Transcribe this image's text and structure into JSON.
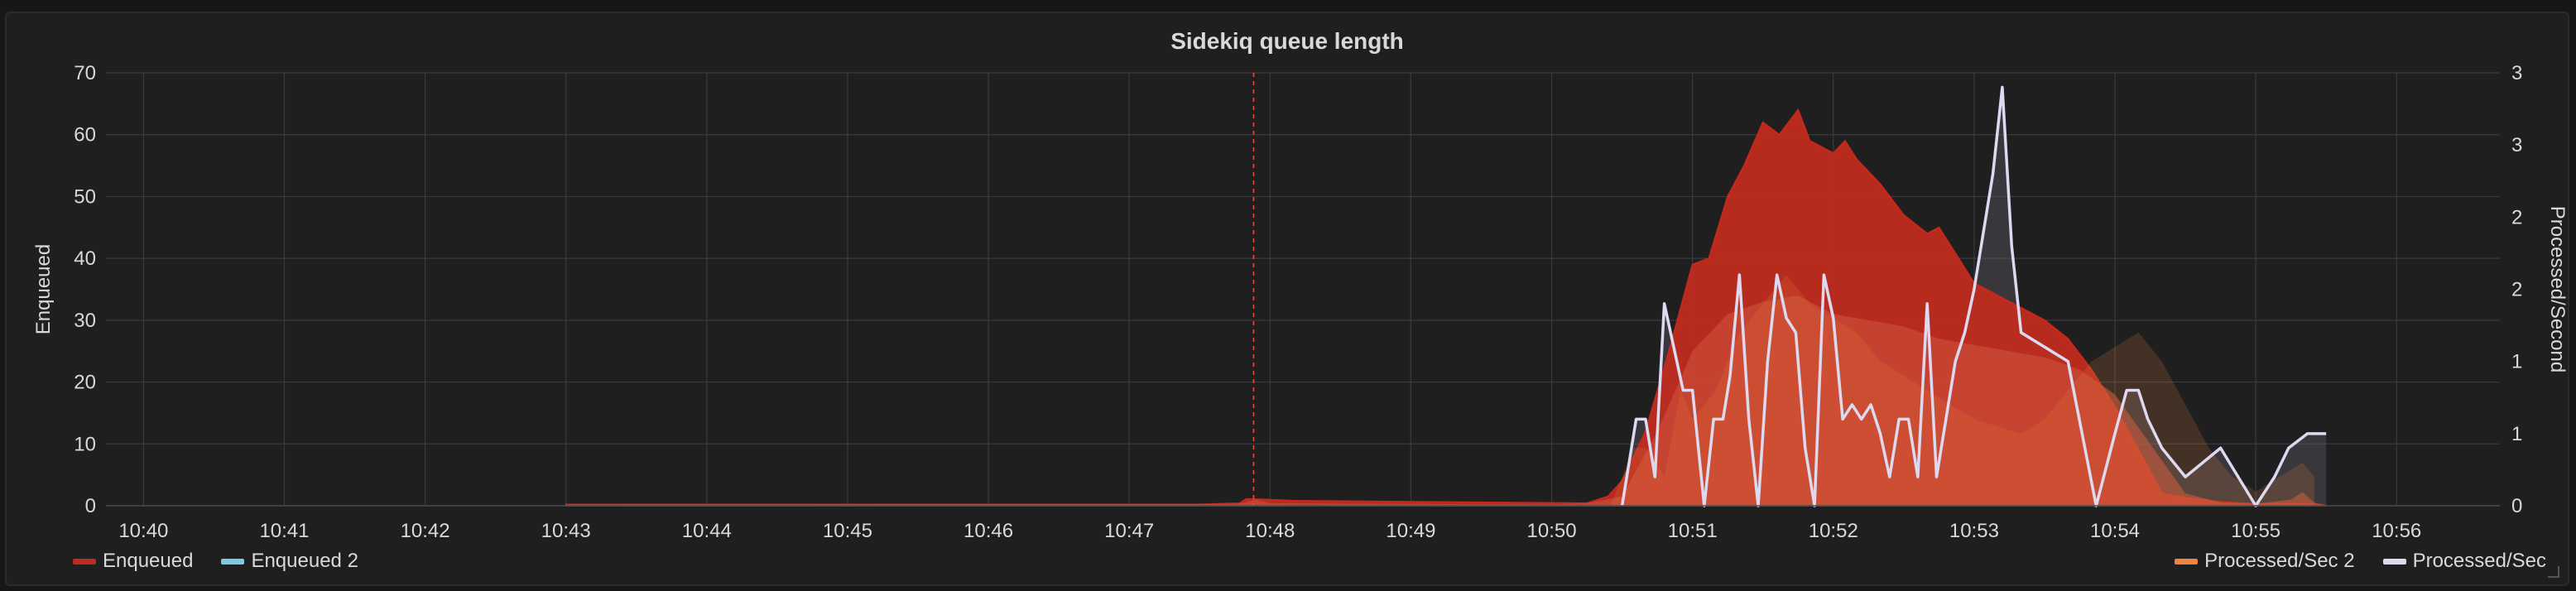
{
  "panel": {
    "title": "Sidekiq queue length"
  },
  "chart_data": {
    "type": "area",
    "title": "Sidekiq queue length",
    "ylabel": "Enqueued",
    "y2label": "Processed/Second",
    "ylim": [
      0,
      70
    ],
    "y_ticks": [
      "0",
      "10",
      "20",
      "30",
      "40",
      "50",
      "60",
      "70"
    ],
    "y2lim": [
      0,
      3
    ],
    "y2_ticks": [
      "0",
      "1",
      "1",
      "2",
      "2",
      "3",
      "3"
    ],
    "x_ticks": [
      "10:40",
      "10:41",
      "10:42",
      "10:43",
      "10:44",
      "10:45",
      "10:46",
      "10:47",
      "10:48",
      "10:49",
      "10:50",
      "10:51",
      "10:52",
      "10:53",
      "10:54",
      "10:55",
      "10:56"
    ],
    "xlim": [
      "10:39:44",
      "10:56:44"
    ],
    "annotation_time": "10:47:53",
    "grid": true,
    "colors": {
      "Enqueued": "#bf2c1f",
      "Enqueued 2": "#7ec8e3",
      "Processed/Sec 2": "#ef843c",
      "Processed/Sec": "#dcd9f0",
      "annotation": "#e24d42"
    },
    "series": [
      {
        "name": "Enqueued",
        "axis": "left",
        "style": "area",
        "x": [
          "10:43:00",
          "10:47:30",
          "10:47:47",
          "10:47:50",
          "10:47:58",
          "10:48:10",
          "10:50:15",
          "10:50:24",
          "10:50:30",
          "10:50:40",
          "10:50:50",
          "10:51:00",
          "10:51:07",
          "10:51:15",
          "10:51:22",
          "10:51:30",
          "10:51:37",
          "10:51:45",
          "10:51:50",
          "10:51:55",
          "10:52:00",
          "10:52:05",
          "10:52:10",
          "10:52:20",
          "10:52:30",
          "10:52:40",
          "10:52:45",
          "10:52:50",
          "10:53:00",
          "10:53:10",
          "10:53:20",
          "10:53:30",
          "10:53:40",
          "10:53:50",
          "10:54:00",
          "10:54:10",
          "10:54:20",
          "10:54:30",
          "10:54:45",
          "10:55:00",
          "10:55:20",
          "10:55:28",
          "10:55:30"
        ],
        "values": [
          0.2,
          0.2,
          0.4,
          1.1,
          1.0,
          0.8,
          0.4,
          1.5,
          4,
          12,
          25,
          39,
          40,
          50,
          55,
          62,
          60,
          64,
          59,
          58,
          57,
          59,
          56,
          52,
          47,
          44,
          45,
          42,
          36,
          34,
          32,
          30,
          27,
          22,
          16,
          9,
          2,
          1.3,
          0.6,
          0.3,
          0.3,
          0.2,
          0
        ]
      },
      {
        "name": "Enqueued 2",
        "axis": "left",
        "style": "area",
        "x": [
          "10:43:00",
          "10:47:46",
          "10:47:50",
          "10:47:54",
          "10:48:00",
          "10:50:00",
          "10:50:15",
          "10:50:30",
          "10:50:45",
          "10:51:00",
          "10:51:15",
          "10:51:30",
          "10:51:45",
          "10:52:00",
          "10:52:15",
          "10:52:30",
          "10:52:45",
          "10:53:00",
          "10:53:15",
          "10:53:30",
          "10:53:45",
          "10:54:00",
          "10:54:15",
          "10:54:30",
          "10:54:45",
          "10:55:00",
          "10:55:15",
          "10:55:20",
          "10:55:25",
          "10:55:30"
        ],
        "values": [
          0.2,
          0.3,
          0.6,
          1.0,
          0.4,
          0.2,
          0.4,
          1.5,
          12,
          25,
          31,
          33,
          34,
          31,
          30,
          29,
          27,
          26,
          25,
          24,
          22,
          18,
          10,
          2,
          0.5,
          0.3,
          1.0,
          2.2,
          0.5,
          0
        ]
      },
      {
        "name": "Processed/Sec 2",
        "axis": "right",
        "style": "area",
        "x": [
          "10:50:25",
          "10:50:35",
          "10:50:40",
          "10:50:48",
          "10:50:55",
          "10:51:00",
          "10:51:10",
          "10:51:20",
          "10:51:30",
          "10:51:40",
          "10:51:50",
          "10:52:00",
          "10:52:10",
          "10:52:20",
          "10:52:30",
          "10:52:40",
          "10:52:50",
          "10:53:00",
          "10:53:10",
          "10:53:20",
          "10:53:30",
          "10:53:40",
          "10:53:50",
          "10:54:00",
          "10:54:10",
          "10:54:20",
          "10:54:30",
          "10:54:40",
          "10:54:50",
          "10:55:00",
          "10:55:10",
          "10:55:20",
          "10:55:25"
        ],
        "values": [
          0,
          0.4,
          0.4,
          0.2,
          0.8,
          0.6,
          0.8,
          1.2,
          1.4,
          1.6,
          1.4,
          1.3,
          1.2,
          1.0,
          0.9,
          0.8,
          0.7,
          0.6,
          0.55,
          0.5,
          0.6,
          0.8,
          1.0,
          1.1,
          1.2,
          1.0,
          0.7,
          0.4,
          0.2,
          0.1,
          0.2,
          0.3,
          0.2
        ]
      },
      {
        "name": "Processed/Sec",
        "axis": "right",
        "style": "line",
        "x": [
          "10:50:30",
          "10:50:36",
          "10:50:40",
          "10:50:44",
          "10:50:48",
          "10:50:52",
          "10:50:56",
          "10:51:00",
          "10:51:05",
          "10:51:09",
          "10:51:13",
          "10:51:16",
          "10:51:20",
          "10:51:24",
          "10:51:28",
          "10:51:32",
          "10:51:36",
          "10:51:40",
          "10:51:44",
          "10:51:48",
          "10:51:52",
          "10:51:56",
          "10:52:00",
          "10:52:04",
          "10:52:08",
          "10:52:12",
          "10:52:16",
          "10:52:20",
          "10:52:24",
          "10:52:28",
          "10:52:32",
          "10:52:36",
          "10:52:40",
          "10:52:44",
          "10:52:48",
          "10:52:52",
          "10:52:56",
          "10:53:00",
          "10:53:04",
          "10:53:08",
          "10:53:12",
          "10:53:16",
          "10:53:20",
          "10:53:40",
          "10:53:52",
          "10:54:00",
          "10:54:05",
          "10:54:10",
          "10:54:14",
          "10:54:20",
          "10:54:30",
          "10:54:45",
          "10:55:00",
          "10:55:08",
          "10:55:14",
          "10:55:22",
          "10:55:30"
        ],
        "values": [
          0,
          0.6,
          0.6,
          0.2,
          1.4,
          1.1,
          0.8,
          0.8,
          0,
          0.6,
          0.6,
          0.9,
          1.6,
          0.6,
          0,
          1.0,
          1.6,
          1.3,
          1.2,
          0.4,
          0,
          1.6,
          1.3,
          0.6,
          0.7,
          0.6,
          0.7,
          0.5,
          0.2,
          0.6,
          0.6,
          0.2,
          1.4,
          0.2,
          0.6,
          1.0,
          1.2,
          1.5,
          1.9,
          2.3,
          2.9,
          1.8,
          1.2,
          1.0,
          0,
          0.5,
          0.8,
          0.8,
          0.6,
          0.4,
          0.2,
          0.4,
          0.0,
          0.2,
          0.4,
          0.5,
          0.5
        ]
      }
    ]
  },
  "legend": {
    "left": [
      {
        "label": "Enqueued",
        "color": "#bf2c1f"
      },
      {
        "label": "Enqueued 2",
        "color": "#7ec8e3"
      }
    ],
    "right": [
      {
        "label": "Processed/Sec 2",
        "color": "#ef843c"
      },
      {
        "label": "Processed/Sec",
        "color": "#dcd9f0"
      }
    ]
  }
}
